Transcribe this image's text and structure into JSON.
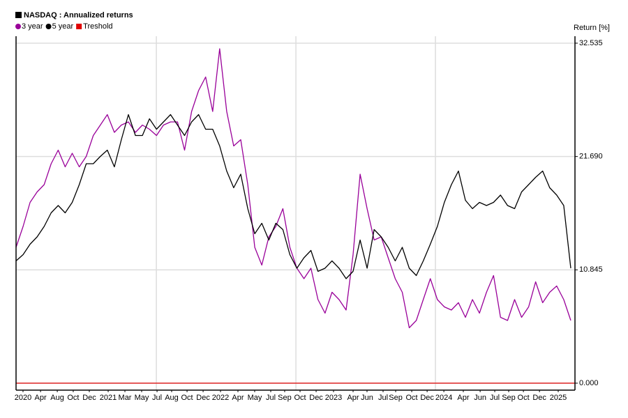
{
  "chart_data": {
    "type": "line",
    "title": "NASDAQ : Annualized returns",
    "ylabel": "Return [%]",
    "x": [
      2020.18,
      2020.2425,
      2020.305,
      2020.3675,
      2020.43,
      2020.4925,
      2020.555,
      2020.6175,
      2020.68,
      2020.7425,
      2020.805,
      2020.8675,
      2020.93,
      2020.9925,
      2021.055,
      2021.1175,
      2021.18,
      2021.2425,
      2021.305,
      2021.3675,
      2021.43,
      2021.4925,
      2021.555,
      2021.6175,
      2021.68,
      2021.7425,
      2021.805,
      2021.8675,
      2021.93,
      2021.9925,
      2022.055,
      2022.1175,
      2022.18,
      2022.2425,
      2022.305,
      2022.3675,
      2022.43,
      2022.4925,
      2022.555,
      2022.6175,
      2022.68,
      2022.7425,
      2022.805,
      2022.8675,
      2022.93,
      2022.9925,
      2023.055,
      2023.1175,
      2023.18,
      2023.2425,
      2023.305,
      2023.3675,
      2023.43,
      2023.4925,
      2023.555,
      2023.6175,
      2023.68,
      2023.7425,
      2023.805,
      2023.8675,
      2023.93,
      2023.9925,
      2024.055,
      2024.1175,
      2024.18,
      2024.2425,
      2024.305,
      2024.3675,
      2024.43,
      2024.4925,
      2024.555,
      2024.6175,
      2024.68,
      2024.7425,
      2024.805,
      2024.8675,
      2024.93,
      2024.9925,
      2025.055,
      2025.1175
    ],
    "series": [
      {
        "name": "3 year",
        "color": "#990099",
        "values": [
          13,
          15,
          17.3,
          18.3,
          19,
          21,
          22.3,
          20.7,
          22,
          20.7,
          21.7,
          23.7,
          24.7,
          25.7,
          24,
          24.7,
          25,
          24,
          24.7,
          24.3,
          23.7,
          24.7,
          25,
          25,
          22.3,
          26,
          28,
          29.3,
          26,
          32,
          26,
          22.7,
          23.3,
          19,
          13,
          11.3,
          14,
          15,
          16.7,
          13,
          11,
          10,
          11,
          8,
          6.7,
          8.7,
          8,
          7,
          12.3,
          20,
          16.7,
          13.7,
          14,
          12,
          10,
          8.7,
          5.3,
          6,
          8,
          10,
          8,
          7.3,
          7,
          7.7,
          6.3,
          8,
          6.7,
          8.7,
          10.3,
          6.3,
          6,
          8,
          6.3,
          7.3,
          9.7,
          7.7,
          8.7,
          9.3,
          8,
          6
        ]
      },
      {
        "name": "5 year",
        "color": "#000000",
        "values": [
          11.7,
          12.3,
          13.3,
          14,
          15,
          16.3,
          17,
          16.3,
          17.3,
          19,
          21,
          21,
          21.7,
          22.3,
          20.7,
          23.3,
          25.7,
          23.7,
          23.7,
          25.3,
          24.3,
          25,
          25.7,
          24.7,
          23.7,
          25,
          25.7,
          24.3,
          24.3,
          22.7,
          20.3,
          18.7,
          20,
          16.7,
          14.3,
          15.3,
          13.7,
          15.3,
          14.7,
          12.3,
          11,
          12,
          12.7,
          10.7,
          11,
          11.7,
          11,
          10,
          10.7,
          13.7,
          11,
          14.7,
          14,
          13,
          11.7,
          13,
          11,
          10.3,
          11.7,
          13.3,
          15,
          17.3,
          19,
          20.3,
          17.5,
          16.7,
          17.3,
          17,
          17.3,
          18,
          17,
          16.7,
          18.3,
          19,
          19.7,
          20.3,
          18.7,
          18,
          17,
          11
        ]
      }
    ],
    "threshold": {
      "name": "Treshold",
      "color": "#e00000",
      "value": 0
    },
    "xlim": [
      2020.18,
      2025.155
    ],
    "xticks": [
      {
        "value": 2020.242,
        "label": "2020"
      },
      {
        "value": 2020.398,
        "label": "Apr"
      },
      {
        "value": 2020.547,
        "label": "Aug"
      },
      {
        "value": 2020.689,
        "label": "Oct"
      },
      {
        "value": 2020.832,
        "label": "Dec"
      },
      {
        "value": 2021,
        "label": "2021"
      },
      {
        "value": 2021.149,
        "label": "Mar"
      },
      {
        "value": 2021.298,
        "label": "May"
      },
      {
        "value": 2021.435,
        "label": "Jul"
      },
      {
        "value": 2021.565,
        "label": "Aug"
      },
      {
        "value": 2021.702,
        "label": "Oct"
      },
      {
        "value": 2021.845,
        "label": "Dec"
      },
      {
        "value": 2022,
        "label": "2022"
      },
      {
        "value": 2022.155,
        "label": "Apr"
      },
      {
        "value": 2022.304,
        "label": "May"
      },
      {
        "value": 2022.447,
        "label": "Jul"
      },
      {
        "value": 2022.571,
        "label": "Sep"
      },
      {
        "value": 2022.708,
        "label": "Oct"
      },
      {
        "value": 2022.851,
        "label": "Dec"
      },
      {
        "value": 2023.006,
        "label": "2023"
      },
      {
        "value": 2023.18,
        "label": "Apr"
      },
      {
        "value": 2023.304,
        "label": "Jun"
      },
      {
        "value": 2023.447,
        "label": "Jul"
      },
      {
        "value": 2023.559,
        "label": "Sep"
      },
      {
        "value": 2023.702,
        "label": "Oct"
      },
      {
        "value": 2023.839,
        "label": "Dec"
      },
      {
        "value": 2023.988,
        "label": "2024"
      },
      {
        "value": 2024.161,
        "label": "Apr"
      },
      {
        "value": 2024.311,
        "label": "Jun"
      },
      {
        "value": 2024.441,
        "label": "Jul"
      },
      {
        "value": 2024.565,
        "label": "Sep"
      },
      {
        "value": 2024.696,
        "label": "Oct"
      },
      {
        "value": 2024.839,
        "label": "Dec"
      },
      {
        "value": 2025.006,
        "label": "2025"
      }
    ],
    "xgrid": [
      2021.429,
      2022.671,
      2023.913
    ],
    "ylim": [
      -0.667,
      33.2
    ],
    "yticks": [
      {
        "value": 0,
        "label": "0.000"
      },
      {
        "value": 10.845,
        "label": "10.845"
      },
      {
        "value": 21.69,
        "label": "21.690"
      },
      {
        "value": 32.535,
        "label": "32.535"
      }
    ],
    "grid": true
  }
}
